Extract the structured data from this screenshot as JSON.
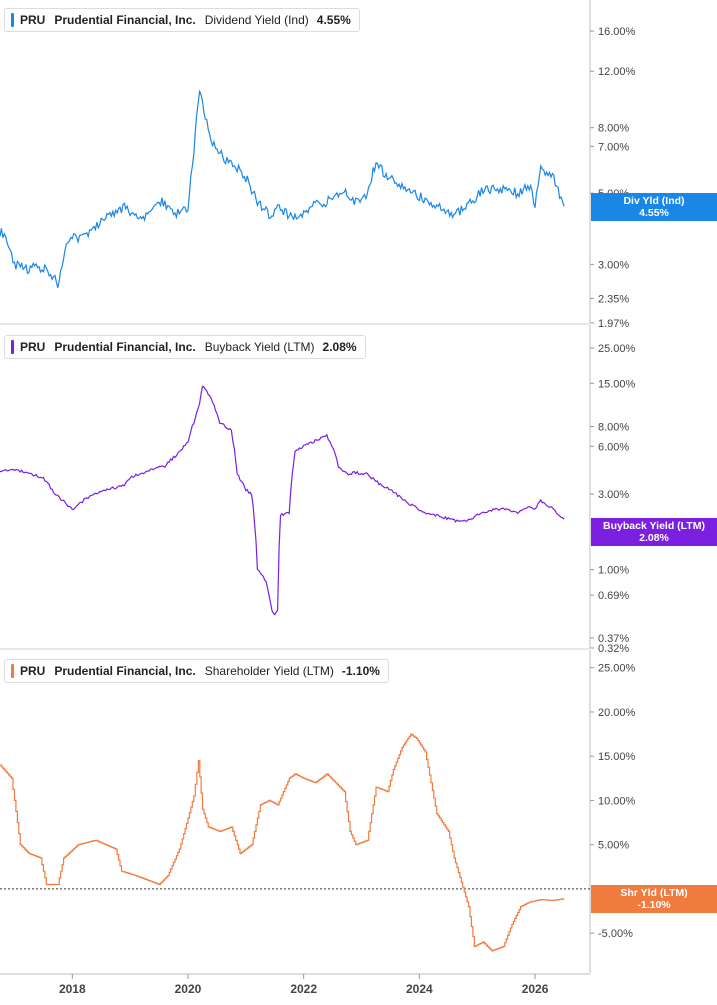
{
  "chart_data": [
    {
      "type": "line",
      "y_scale": "log",
      "ticker": "PRU",
      "company": "Prudential Financial, Inc.",
      "metric": "Dividend Yield (Ind)",
      "current_value": "4.55%",
      "color": "#1a86e6",
      "tag": {
        "label": "Div Yld (Ind)",
        "value": "4.55%"
      },
      "yticks": [
        "16.00%",
        "12.00%",
        "8.00%",
        "7.00%",
        "5.00%",
        "3.00%",
        "2.35%",
        "1.97%"
      ],
      "ytick_values": [
        16,
        12,
        8,
        7,
        5,
        3,
        2.35,
        1.97
      ],
      "ylim": [
        1.97,
        20
      ],
      "x": [
        2016.75,
        2016.85,
        2017.0,
        2017.2,
        2017.35,
        2017.5,
        2017.55,
        2017.6,
        2017.7,
        2017.75,
        2017.9,
        2018.0,
        2018.2,
        2018.4,
        2018.6,
        2018.75,
        2018.9,
        2019.0,
        2019.2,
        2019.4,
        2019.55,
        2019.7,
        2019.85,
        2020.0,
        2020.1,
        2020.2,
        2020.23,
        2020.3,
        2020.4,
        2020.6,
        2020.8,
        2021.0,
        2021.2,
        2021.4,
        2021.6,
        2021.8,
        2022.0,
        2022.2,
        2022.4,
        2022.6,
        2022.75,
        2022.9,
        2023.0,
        2023.1,
        2023.25,
        2023.3,
        2023.5,
        2023.7,
        2023.85,
        2024.0,
        2024.2,
        2024.4,
        2024.6,
        2024.8,
        2024.95,
        2025.1,
        2025.3,
        2025.5,
        2025.7,
        2025.9,
        2026.0,
        2026.1,
        2026.3,
        2026.5
      ],
      "y": [
        3.8,
        3.7,
        3.0,
        2.9,
        2.95,
        2.9,
        3.0,
        2.8,
        2.7,
        2.5,
        3.5,
        3.6,
        3.7,
        3.9,
        4.2,
        4.4,
        4.5,
        4.3,
        4.1,
        4.5,
        4.7,
        4.4,
        4.3,
        4.5,
        6.5,
        10.5,
        10.0,
        8.5,
        7.3,
        6.5,
        6.1,
        5.6,
        4.7,
        4.3,
        4.5,
        4.2,
        4.3,
        4.6,
        4.7,
        4.9,
        5.0,
        4.7,
        4.8,
        4.9,
        6.3,
        6.0,
        5.6,
        5.2,
        5.0,
        4.9,
        4.7,
        4.5,
        4.3,
        4.5,
        4.8,
        5.1,
        5.2,
        5.1,
        5.0,
        5.3,
        4.6,
        6.0,
        5.7,
        4.55
      ]
    },
    {
      "type": "line",
      "y_scale": "log",
      "ticker": "PRU",
      "company": "Prudential Financial, Inc.",
      "metric": "Buyback Yield (LTM)",
      "current_value": "2.08%",
      "color": "#7b1fe0",
      "tag": {
        "label": "Buyback Yield (LTM)",
        "value": "2.08%"
      },
      "yticks": [
        "25.00%",
        "15.00%",
        "8.00%",
        "6.00%",
        "3.00%",
        "1.00%",
        "0.69%",
        "0.37%",
        "0.32%"
      ],
      "ytick_values": [
        25,
        15,
        8,
        6,
        3,
        1,
        0.69,
        0.37,
        0.32
      ],
      "ylim": [
        0.32,
        35
      ],
      "x": [
        2016.75,
        2017.0,
        2017.3,
        2017.5,
        2017.7,
        2017.9,
        2018.0,
        2018.3,
        2018.6,
        2018.9,
        2019.0,
        2019.3,
        2019.6,
        2019.85,
        2020.0,
        2020.1,
        2020.2,
        2020.25,
        2020.4,
        2020.55,
        2020.75,
        2020.85,
        2021.0,
        2021.1,
        2021.2,
        2021.35,
        2021.45,
        2021.5,
        2021.55,
        2021.6,
        2021.75,
        2021.85,
        2022.0,
        2022.2,
        2022.4,
        2022.5,
        2022.6,
        2022.75,
        2022.9,
        2023.1,
        2023.3,
        2023.5,
        2023.7,
        2023.9,
        2024.1,
        2024.3,
        2024.5,
        2024.7,
        2024.9,
        2025.1,
        2025.3,
        2025.5,
        2025.7,
        2025.9,
        2026.0,
        2026.1,
        2026.25,
        2026.5
      ],
      "y": [
        4.2,
        4.3,
        4.0,
        3.8,
        3.0,
        2.6,
        2.4,
        2.9,
        3.2,
        3.4,
        3.8,
        4.2,
        4.5,
        5.5,
        6.5,
        8.5,
        11.0,
        14.5,
        12.0,
        8.5,
        7.5,
        4.0,
        3.2,
        3.0,
        1.0,
        0.85,
        0.55,
        0.52,
        0.55,
        2.2,
        2.3,
        5.5,
        6.0,
        6.5,
        7.0,
        6.0,
        4.5,
        4.0,
        4.1,
        4.0,
        3.5,
        3.2,
        2.8,
        2.5,
        2.3,
        2.2,
        2.1,
        2.0,
        2.1,
        2.3,
        2.4,
        2.4,
        2.3,
        2.5,
        2.4,
        2.7,
        2.5,
        2.08
      ]
    },
    {
      "type": "line",
      "y_scale": "linear",
      "ticker": "PRU",
      "company": "Prudential Financial, Inc.",
      "metric": "Shareholder Yield (LTM)",
      "current_value": "-1.10%",
      "color": "#f07b3f",
      "tag": {
        "label": "Shr Yld (LTM)",
        "value": "-1.10%"
      },
      "reference_line": 0,
      "yticks": [
        "25.00%",
        "20.00%",
        "15.00%",
        "10.00%",
        "5.00%",
        "-5.00%"
      ],
      "ytick_values": [
        25,
        20,
        15,
        10,
        5,
        -5
      ],
      "ylim": [
        -9.5,
        27
      ],
      "x": [
        2016.75,
        2016.95,
        2017.1,
        2017.25,
        2017.45,
        2017.55,
        2017.75,
        2017.85,
        2018.1,
        2018.4,
        2018.75,
        2018.85,
        2019.1,
        2019.3,
        2019.5,
        2019.65,
        2019.85,
        2020.0,
        2020.1,
        2020.18,
        2020.25,
        2020.35,
        2020.55,
        2020.75,
        2020.9,
        2021.1,
        2021.25,
        2021.4,
        2021.55,
        2021.75,
        2021.85,
        2022.0,
        2022.2,
        2022.4,
        2022.55,
        2022.7,
        2022.8,
        2022.9,
        2023.1,
        2023.25,
        2023.45,
        2023.55,
        2023.7,
        2023.85,
        2023.95,
        2024.1,
        2024.3,
        2024.5,
        2024.6,
        2024.85,
        2024.95,
        2025.1,
        2025.25,
        2025.45,
        2025.6,
        2025.75,
        2025.9,
        2026.1,
        2026.3,
        2026.5
      ],
      "y": [
        14.0,
        12.5,
        5.0,
        4.0,
        3.5,
        0.5,
        0.5,
        3.5,
        5.0,
        5.5,
        4.5,
        2.0,
        1.5,
        1.0,
        0.5,
        1.5,
        4.5,
        8.0,
        10.5,
        14.5,
        9.0,
        7.0,
        6.5,
        7.0,
        4.0,
        5.0,
        9.5,
        10.0,
        9.5,
        12.5,
        13.0,
        12.5,
        12.0,
        13.0,
        12.0,
        11.0,
        6.5,
        5.0,
        5.5,
        11.5,
        11.0,
        13.5,
        16.0,
        17.5,
        17.0,
        15.5,
        8.5,
        6.5,
        3.5,
        -2.0,
        -6.5,
        -6.0,
        -7.0,
        -6.5,
        -4.0,
        -2.0,
        -1.5,
        -1.2,
        -1.3,
        -1.1
      ]
    }
  ],
  "x_axis": {
    "ticks": [
      "2018",
      "2020",
      "2022",
      "2024",
      "2026"
    ],
    "tick_values": [
      2018,
      2020,
      2022,
      2024,
      2026
    ],
    "xlim": [
      2016.75,
      2026.95
    ]
  }
}
